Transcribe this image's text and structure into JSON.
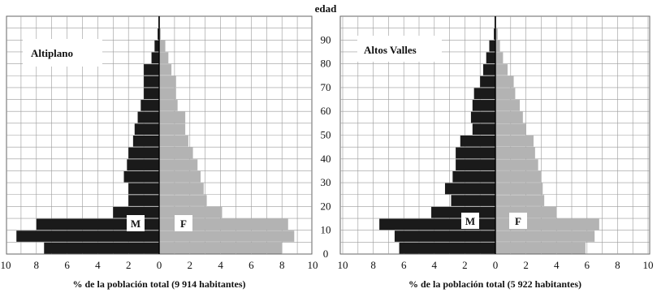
{
  "chart_data": {
    "type": "bar",
    "subtype": "population-pyramid",
    "center_axis_label": "edad",
    "age_ticks": [
      0,
      10,
      20,
      30,
      40,
      50,
      60,
      70,
      80,
      90
    ],
    "x_ticks": [
      "10",
      "8",
      "6",
      "4",
      "2",
      "0",
      "2",
      "4",
      "6",
      "8",
      "10"
    ],
    "colors": {
      "male": "#1a1a1a",
      "female": "#b3b3b3",
      "grid": "#9a9a9a"
    },
    "charts": [
      {
        "title": "Altiplano",
        "xlabel": "% de la población total (9 914 habitantes)",
        "male_label": "M",
        "female_label": "F",
        "age_groups": [
          "0-4",
          "5-9",
          "10-14",
          "15-19",
          "20-24",
          "25-29",
          "30-34",
          "35-39",
          "40-44",
          "45-49",
          "50-54",
          "55-59",
          "60-64",
          "65-69",
          "70-74",
          "75-79",
          "80-84",
          "85-89",
          "90-94",
          "95+"
        ],
        "male": [
          7.5,
          9.3,
          8.0,
          3.0,
          2.0,
          2.0,
          2.3,
          2.1,
          2.0,
          1.7,
          1.6,
          1.4,
          1.2,
          1.0,
          1.0,
          1.0,
          0.5,
          0.3,
          0.1,
          0.05
        ],
        "female": [
          8.0,
          8.8,
          8.4,
          4.1,
          3.1,
          2.9,
          2.7,
          2.5,
          2.2,
          1.9,
          1.7,
          1.7,
          1.2,
          1.1,
          1.1,
          0.8,
          0.6,
          0.4,
          0.1,
          0.05
        ]
      },
      {
        "title": "Altos Valles",
        "xlabel": "% de la población total  (5 922 habitantes)",
        "male_label": "M",
        "female_label": "F",
        "age_groups": [
          "0-4",
          "5-9",
          "10-14",
          "15-19",
          "20-24",
          "25-29",
          "30-34",
          "35-39",
          "40-44",
          "45-49",
          "50-54",
          "55-59",
          "60-64",
          "65-69",
          "70-74",
          "75-79",
          "80-84",
          "85-89",
          "90-94",
          "95+"
        ],
        "male": [
          6.3,
          6.6,
          7.6,
          4.2,
          2.9,
          3.3,
          2.8,
          2.6,
          2.6,
          2.3,
          1.5,
          1.6,
          1.5,
          1.4,
          1.0,
          0.8,
          0.6,
          0.4,
          0.1,
          0.05
        ],
        "female": [
          5.9,
          6.5,
          6.8,
          4.0,
          3.2,
          3.1,
          3.0,
          2.8,
          2.6,
          2.5,
          2.0,
          1.8,
          1.6,
          1.3,
          1.2,
          0.8,
          0.5,
          0.3,
          0.15,
          0.05
        ]
      }
    ]
  }
}
